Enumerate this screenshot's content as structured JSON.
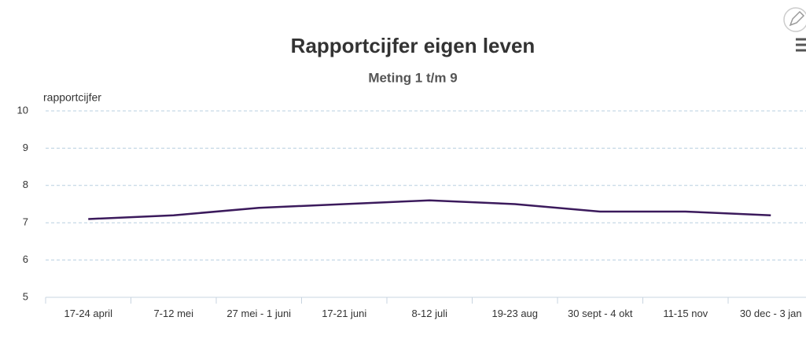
{
  "chart_data": {
    "type": "line",
    "title": "Rapportcijfer eigen leven",
    "subtitle": "Meting 1 t/m 9",
    "y_label": "rapportcijfer",
    "categories": [
      "17-24 april",
      "7-12 mei",
      "27 mei - 1 juni",
      "17-21 juni",
      "8-12 juli",
      "19-23 aug",
      "30 sept - 4 okt",
      "11-15 nov",
      "30 dec - 3 jan"
    ],
    "series": [
      {
        "name": "rapportcijfer",
        "color": "#3b1a5c",
        "values": [
          7.1,
          7.2,
          7.4,
          7.5,
          7.6,
          7.5,
          7.3,
          7.3,
          7.2
        ]
      }
    ],
    "ylim": [
      5,
      10
    ],
    "yticks": [
      5,
      6,
      7,
      8,
      9,
      10
    ],
    "grid": true
  }
}
